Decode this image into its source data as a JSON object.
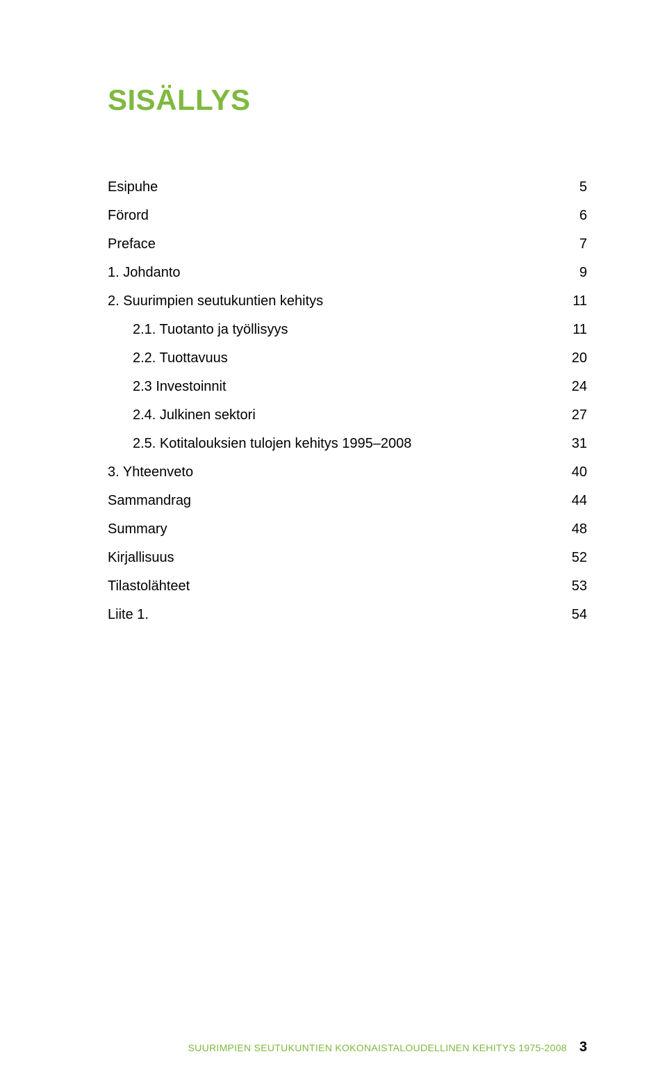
{
  "colors": {
    "accent": "#7fb93f",
    "text": "#000000",
    "background": "#ffffff"
  },
  "typography": {
    "title_fontsize": 42,
    "title_weight": 700,
    "row_fontsize": 20,
    "footer_text_fontsize": 14,
    "footer_num_fontsize": 20
  },
  "title": "SISÄLLYS",
  "toc": [
    {
      "label": "Esipuhe",
      "page": "5",
      "indent": false
    },
    {
      "label": "Förord",
      "page": "6",
      "indent": false
    },
    {
      "label": "Preface",
      "page": "7",
      "indent": false
    },
    {
      "label": "1. Johdanto",
      "page": "9",
      "indent": false
    },
    {
      "label": "2. Suurimpien seutukuntien kehitys",
      "page": "11",
      "indent": false
    },
    {
      "label": "2.1. Tuotanto ja työllisyys  ",
      "page": "11",
      "indent": true
    },
    {
      "label": "2.2. Tuottavuus",
      "page": "20",
      "indent": true
    },
    {
      "label": "2.3 Investoinnit",
      "page": "24",
      "indent": true
    },
    {
      "label": "2.4. Julkinen sektori",
      "page": "27",
      "indent": true
    },
    {
      "label": "2.5. Kotitalouksien tulojen kehitys 1995–2008",
      "page": "31",
      "indent": true
    },
    {
      "label": "3. Yhteenveto",
      "page": "40",
      "indent": false
    },
    {
      "label": "Sammandrag",
      "page": "44",
      "indent": false
    },
    {
      "label": "Summary",
      "page": "48",
      "indent": false
    },
    {
      "label": "Kirjallisuus",
      "page": "52",
      "indent": false
    },
    {
      "label": "Tilastolähteet",
      "page": "53",
      "indent": false
    },
    {
      "label": "Liite 1.",
      "page": "54",
      "indent": false
    }
  ],
  "footer": {
    "text": "SUURIMPIEN SEUTUKUNTIEN KOKONAISTALOUDELLINEN KEHITYS 1975-2008",
    "page_number": "3"
  }
}
